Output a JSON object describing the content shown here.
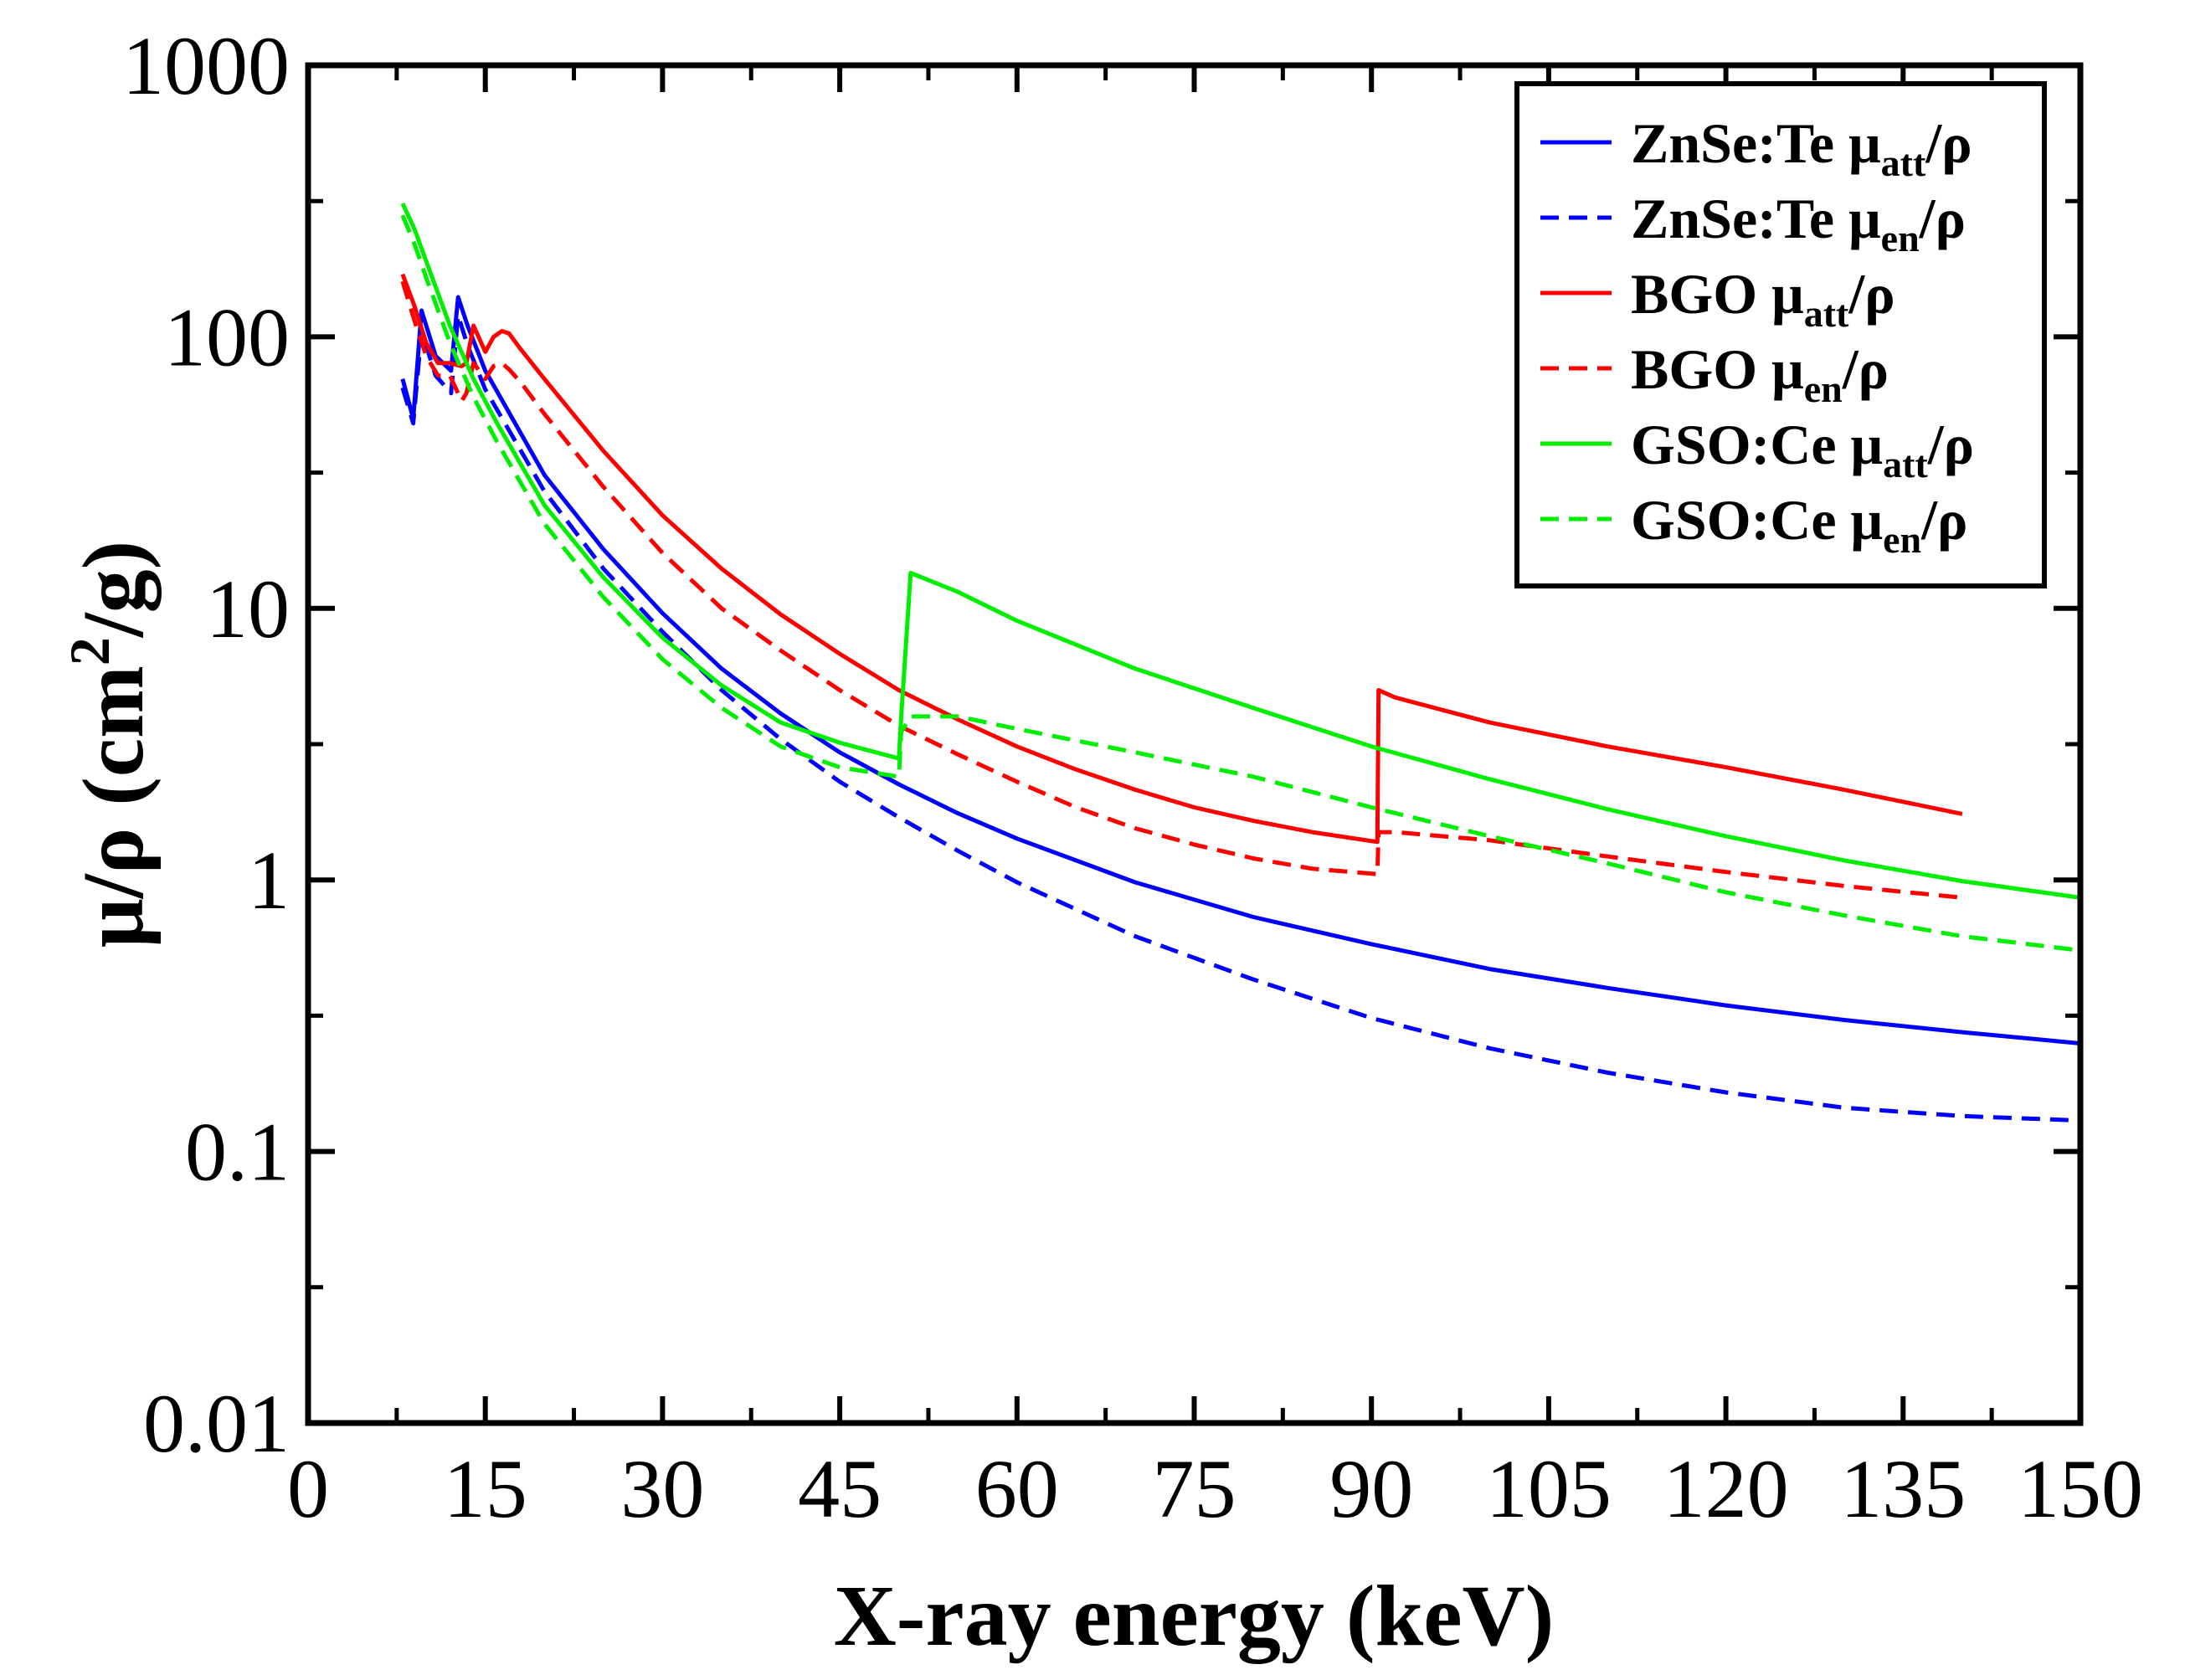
{
  "chart_data": {
    "type": "line",
    "title": "",
    "xlabel": "X-ray energy (keV)",
    "ylabel_parts": {
      "base": "μ/ρ (cm",
      "sup": "2",
      "tail": "/g)"
    },
    "xlim": [
      0,
      150
    ],
    "ylim": [
      0.01,
      1000
    ],
    "yscale": "log",
    "legend_position": "top-right",
    "x_ticks": [
      0,
      15,
      30,
      45,
      60,
      75,
      90,
      105,
      120,
      135,
      150
    ],
    "x_tick_labels": [
      "0",
      "15",
      "30",
      "45",
      "60",
      "75",
      "90",
      "105",
      "120",
      "135",
      "150"
    ],
    "y_ticks": [
      0.01,
      0.1,
      1,
      10,
      100,
      1000
    ],
    "y_tick_labels": [
      "0.01",
      "0.1",
      "1",
      "10",
      "100",
      "1000"
    ],
    "series": [
      {
        "name": "ZnSe:Te μatt/ρ",
        "legend": {
          "pre": "ZnSe:Te μ",
          "sub": "att",
          "post": "/ρ"
        },
        "color": "#0000ff",
        "dashed": false,
        "x": [
          8,
          8.9,
          9.6,
          10.8,
          12.1,
          12.7,
          13.5,
          15,
          20,
          25,
          30,
          35,
          40,
          45,
          50,
          55,
          60,
          70,
          80,
          90,
          100,
          110,
          120,
          130,
          140,
          150
        ],
        "y": [
          70,
          50,
          125,
          85,
          75,
          140,
          110,
          75,
          31,
          16.5,
          9.6,
          6.0,
          4.1,
          2.95,
          2.25,
          1.76,
          1.42,
          0.98,
          0.73,
          0.58,
          0.47,
          0.4,
          0.345,
          0.305,
          0.275,
          0.25
        ]
      },
      {
        "name": "ZnSe:Te μen/ρ",
        "legend": {
          "pre": "ZnSe:Te μ",
          "sub": "en",
          "post": "/ρ"
        },
        "color": "#0000ff",
        "dashed": true,
        "x": [
          8,
          8.9,
          9.6,
          10.8,
          12.1,
          12.7,
          13.5,
          15,
          20,
          25,
          30,
          35,
          40,
          45,
          50,
          55,
          60,
          70,
          80,
          90,
          100,
          110,
          120,
          130,
          140,
          150
        ],
        "y": [
          65,
          48,
          105,
          72,
          62,
          120,
          93,
          64,
          27,
          14,
          8.2,
          5.0,
          3.3,
          2.3,
          1.7,
          1.28,
          0.98,
          0.62,
          0.43,
          0.31,
          0.24,
          0.195,
          0.165,
          0.145,
          0.135,
          0.13
        ]
      },
      {
        "name": "BGO μatt/ρ",
        "legend": {
          "pre": "BGO μ",
          "sub": "att",
          "post": "/ρ"
        },
        "color": "#ff0000",
        "dashed": false,
        "x": [
          8,
          9,
          10,
          11,
          12,
          13,
          13.4,
          14,
          15,
          15.7,
          16.4,
          17,
          18,
          20,
          25,
          30,
          35,
          40,
          45,
          50,
          55,
          60,
          65,
          70,
          75,
          80,
          85,
          90.5,
          90.6,
          92,
          100,
          110,
          120,
          130,
          140
        ],
        "y": [
          170,
          130,
          95,
          80,
          80,
          78,
          80,
          110,
          88,
          100,
          105,
          103,
          90,
          70,
          38,
          22,
          14,
          9.5,
          6.8,
          5.0,
          3.9,
          3.1,
          2.55,
          2.15,
          1.85,
          1.65,
          1.5,
          1.38,
          5.0,
          4.7,
          3.8,
          3.1,
          2.6,
          2.15,
          1.75
        ]
      },
      {
        "name": "BGO μen/ρ",
        "legend": {
          "pre": "BGO μ",
          "sub": "en",
          "post": "/ρ"
        },
        "color": "#ff0000",
        "dashed": true,
        "x": [
          8,
          9,
          10,
          11,
          12,
          13,
          13.4,
          14,
          15,
          15.7,
          16.4,
          17,
          18,
          20,
          25,
          30,
          35,
          40,
          45,
          50,
          55,
          60,
          65,
          70,
          75,
          80,
          85,
          90.5,
          90.6,
          92,
          100,
          110,
          120,
          130,
          140
        ],
        "y": [
          160,
          115,
          85,
          72,
          72,
          58,
          62,
          80,
          70,
          78,
          80,
          76,
          68,
          52,
          28,
          16,
          10,
          7.0,
          5.0,
          3.7,
          2.9,
          2.3,
          1.85,
          1.55,
          1.35,
          1.2,
          1.1,
          1.05,
          1.5,
          1.5,
          1.4,
          1.22,
          1.07,
          0.95,
          0.86
        ]
      },
      {
        "name": "GSO:Ce μatt/ρ",
        "legend": {
          "pre": "GSO:Ce μ",
          "sub": "att",
          "post": "/ρ"
        },
        "color": "#00ee00",
        "dashed": false,
        "x": [
          8,
          9,
          10,
          12,
          14,
          16,
          20,
          25,
          30,
          35,
          40,
          45,
          50,
          50.2,
          51,
          55,
          60,
          70,
          80,
          90,
          100,
          110,
          120,
          130,
          140,
          150
        ],
        "y": [
          310,
          250,
          190,
          110,
          70,
          48,
          24,
          13,
          7.8,
          5.2,
          3.8,
          3.2,
          2.8,
          4.0,
          13.5,
          11.5,
          9.0,
          6.0,
          4.3,
          3.1,
          2.35,
          1.82,
          1.45,
          1.18,
          0.99,
          0.86
        ]
      },
      {
        "name": "GSO:Ce μen/ρ",
        "legend": {
          "pre": "GSO:Ce μ",
          "sub": "en",
          "post": "/ρ"
        },
        "color": "#00ee00",
        "dashed": true,
        "x": [
          8,
          9,
          10,
          12,
          14,
          16,
          20,
          25,
          30,
          35,
          40,
          45,
          50,
          50.2,
          51,
          55,
          60,
          70,
          80,
          90,
          100,
          110,
          120,
          130,
          140,
          150
        ],
        "y": [
          280,
          220,
          165,
          95,
          60,
          41,
          20.5,
          11,
          6.5,
          4.3,
          3.1,
          2.6,
          2.4,
          3.5,
          4.0,
          4.0,
          3.6,
          2.95,
          2.4,
          1.85,
          1.45,
          1.15,
          0.9,
          0.74,
          0.62,
          0.55
        ]
      }
    ]
  }
}
